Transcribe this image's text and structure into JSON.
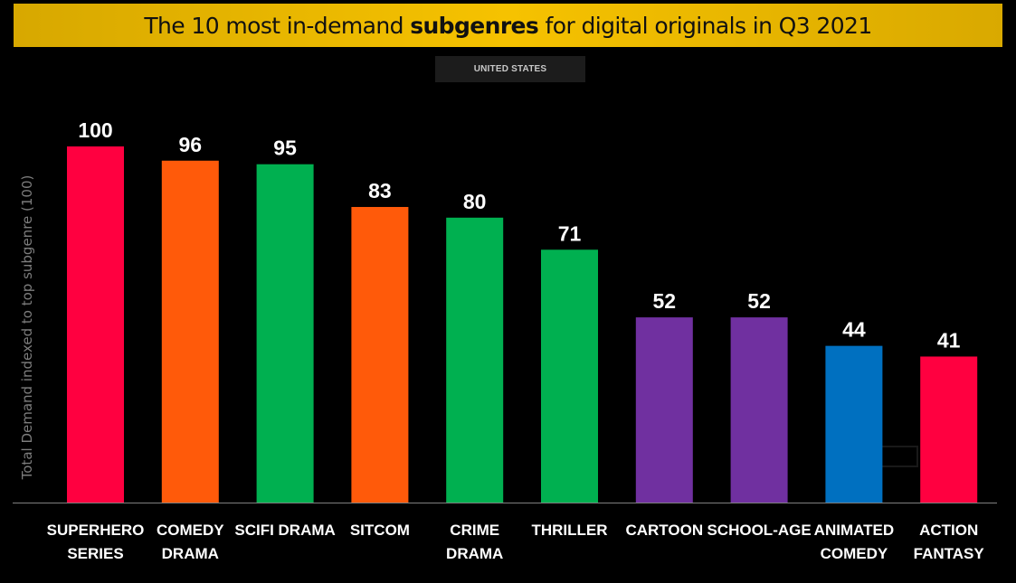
{
  "header": {
    "title_pre": "The 10 most in-demand ",
    "title_bold": "subgenres",
    "title_post": " for digital originals in Q3 2021",
    "region": "UNITED STATES"
  },
  "chart_data": {
    "type": "bar",
    "title": "The 10 most in-demand subgenres for digital originals in Q3 2021",
    "subtitle": "UNITED STATES",
    "ylabel": "Total Demand indexed to top subgenre (100)",
    "xlabel": "",
    "ylim": [
      0,
      100
    ],
    "grid": false,
    "categories": [
      [
        "SUPERHERO",
        "SERIES"
      ],
      [
        "COMEDY",
        "DRAMA"
      ],
      [
        "SCIFI DRAMA"
      ],
      [
        "SITCOM"
      ],
      [
        "CRIME",
        "DRAMA"
      ],
      [
        "THRILLER"
      ],
      [
        "CARTOON"
      ],
      [
        "SCHOOL-AGE"
      ],
      [
        "ANIMATED",
        "COMEDY"
      ],
      [
        "ACTION",
        "FANTASY"
      ]
    ],
    "values": [
      100,
      96,
      95,
      83,
      80,
      71,
      52,
      52,
      44,
      41
    ],
    "colors": [
      "#ff0040",
      "#ff5a0a",
      "#00b050",
      "#ff5a0a",
      "#00b050",
      "#00b050",
      "#7030a0",
      "#7030a0",
      "#0070c0",
      "#ff0040"
    ]
  },
  "colors": {
    "background": "#000000",
    "banner": "#f6c200",
    "axis": "#7f7f7f"
  }
}
